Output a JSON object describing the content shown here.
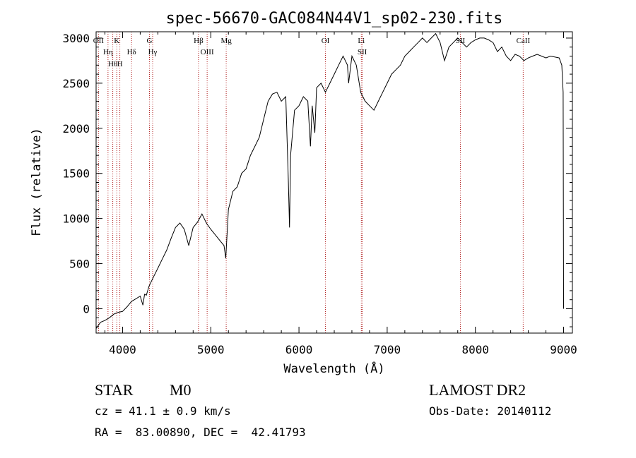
{
  "chart_data": {
    "type": "line",
    "title": "spec-56670-GAC084N44V1_sp02-230.fits",
    "xlabel": "Wavelength (Å)",
    "ylabel": "Flux (relative)",
    "xlim": [
      3700,
      9100
    ],
    "ylim": [
      -270,
      3070
    ],
    "x_ticks": [
      4000,
      5000,
      6000,
      7000,
      8000,
      9000
    ],
    "y_ticks": [
      0,
      500,
      1000,
      1500,
      2000,
      2500,
      3000
    ],
    "grid": false,
    "line_color": "#000000",
    "marker_color": "#b22222",
    "series": [
      {
        "x": [
          3700,
          3750,
          3800,
          3850,
          3900,
          3950,
          4000,
          4050,
          4100,
          4150,
          4200,
          4230,
          4250,
          4270,
          4300,
          4350,
          4400,
          4450,
          4500,
          4550,
          4600,
          4650,
          4700,
          4750,
          4800,
          4850,
          4900,
          4950,
          5000,
          5050,
          5100,
          5150,
          5170,
          5200,
          5250,
          5300,
          5350,
          5400,
          5450,
          5500,
          5550,
          5600,
          5650,
          5700,
          5750,
          5800,
          5850,
          5880,
          5893,
          5905,
          5950,
          6000,
          6050,
          6100,
          6130,
          6150,
          6180,
          6200,
          6250,
          6300,
          6350,
          6400,
          6450,
          6500,
          6550,
          6563,
          6600,
          6650,
          6700,
          6750,
          6800,
          6850,
          6900,
          6950,
          7000,
          7050,
          7100,
          7150,
          7200,
          7250,
          7300,
          7350,
          7400,
          7450,
          7500,
          7550,
          7600,
          7650,
          7700,
          7750,
          7800,
          7850,
          7900,
          7950,
          8000,
          8050,
          8100,
          8150,
          8200,
          8250,
          8300,
          8350,
          8400,
          8450,
          8500,
          8550,
          8600,
          8650,
          8700,
          8750,
          8800,
          8850,
          8900,
          8950,
          8980,
          8995,
          9000
        ],
        "values": [
          -220,
          -150,
          -130,
          -100,
          -60,
          -40,
          -30,
          20,
          80,
          110,
          140,
          40,
          160,
          150,
          250,
          350,
          450,
          550,
          650,
          780,
          900,
          950,
          880,
          700,
          900,
          960,
          1050,
          950,
          880,
          820,
          760,
          700,
          560,
          1100,
          1300,
          1350,
          1500,
          1550,
          1700,
          1800,
          1900,
          2100,
          2300,
          2380,
          2400,
          2300,
          2350,
          1400,
          900,
          1700,
          2200,
          2250,
          2350,
          2300,
          1800,
          2250,
          1950,
          2450,
          2500,
          2400,
          2500,
          2600,
          2700,
          2800,
          2700,
          2500,
          2800,
          2700,
          2400,
          2300,
          2250,
          2200,
          2300,
          2400,
          2500,
          2600,
          2650,
          2700,
          2800,
          2850,
          2900,
          2950,
          3000,
          2950,
          3000,
          3050,
          2950,
          2750,
          2900,
          2950,
          3000,
          2950,
          2900,
          2950,
          2980,
          3000,
          3000,
          2980,
          2950,
          2850,
          2900,
          2800,
          2750,
          2820,
          2800,
          2750,
          2780,
          2800,
          2820,
          2800,
          2780,
          2800,
          2790,
          2780,
          2700,
          2400,
          0
        ]
      }
    ],
    "line_markers": [
      {
        "label": "Hη",
        "x": 3835
      },
      {
        "label": "Hθ",
        "x": 3889
      },
      {
        "label": "OII",
        "x": 3727
      },
      {
        "label": "H",
        "x": 3969
      },
      {
        "label": "K",
        "x": 3934
      },
      {
        "label": "Hδ",
        "x": 4102
      },
      {
        "label": "Hγ",
        "x": 4341
      },
      {
        "label": "G",
        "x": 4305
      },
      {
        "label": "Hβ",
        "x": 4861
      },
      {
        "label": "OIII",
        "x": 4959
      },
      {
        "label": "Mg",
        "x": 5175
      },
      {
        "label": "OI",
        "x": 6300
      },
      {
        "label": "SII",
        "x": 6717
      },
      {
        "label": "Li",
        "x": 6707
      },
      {
        "label": "SII",
        "x": 7830
      },
      {
        "label": "CaII",
        "x": 8542
      }
    ]
  },
  "info": {
    "object_type": "STAR",
    "subclass": "M0",
    "survey": "LAMOST DR2",
    "redshift_line": "cz = 41.1 ± 0.9 km/s",
    "obs_date": "Obs-Date: 20140112",
    "coords": "RA =  83.00890, DEC =  42.41793"
  }
}
